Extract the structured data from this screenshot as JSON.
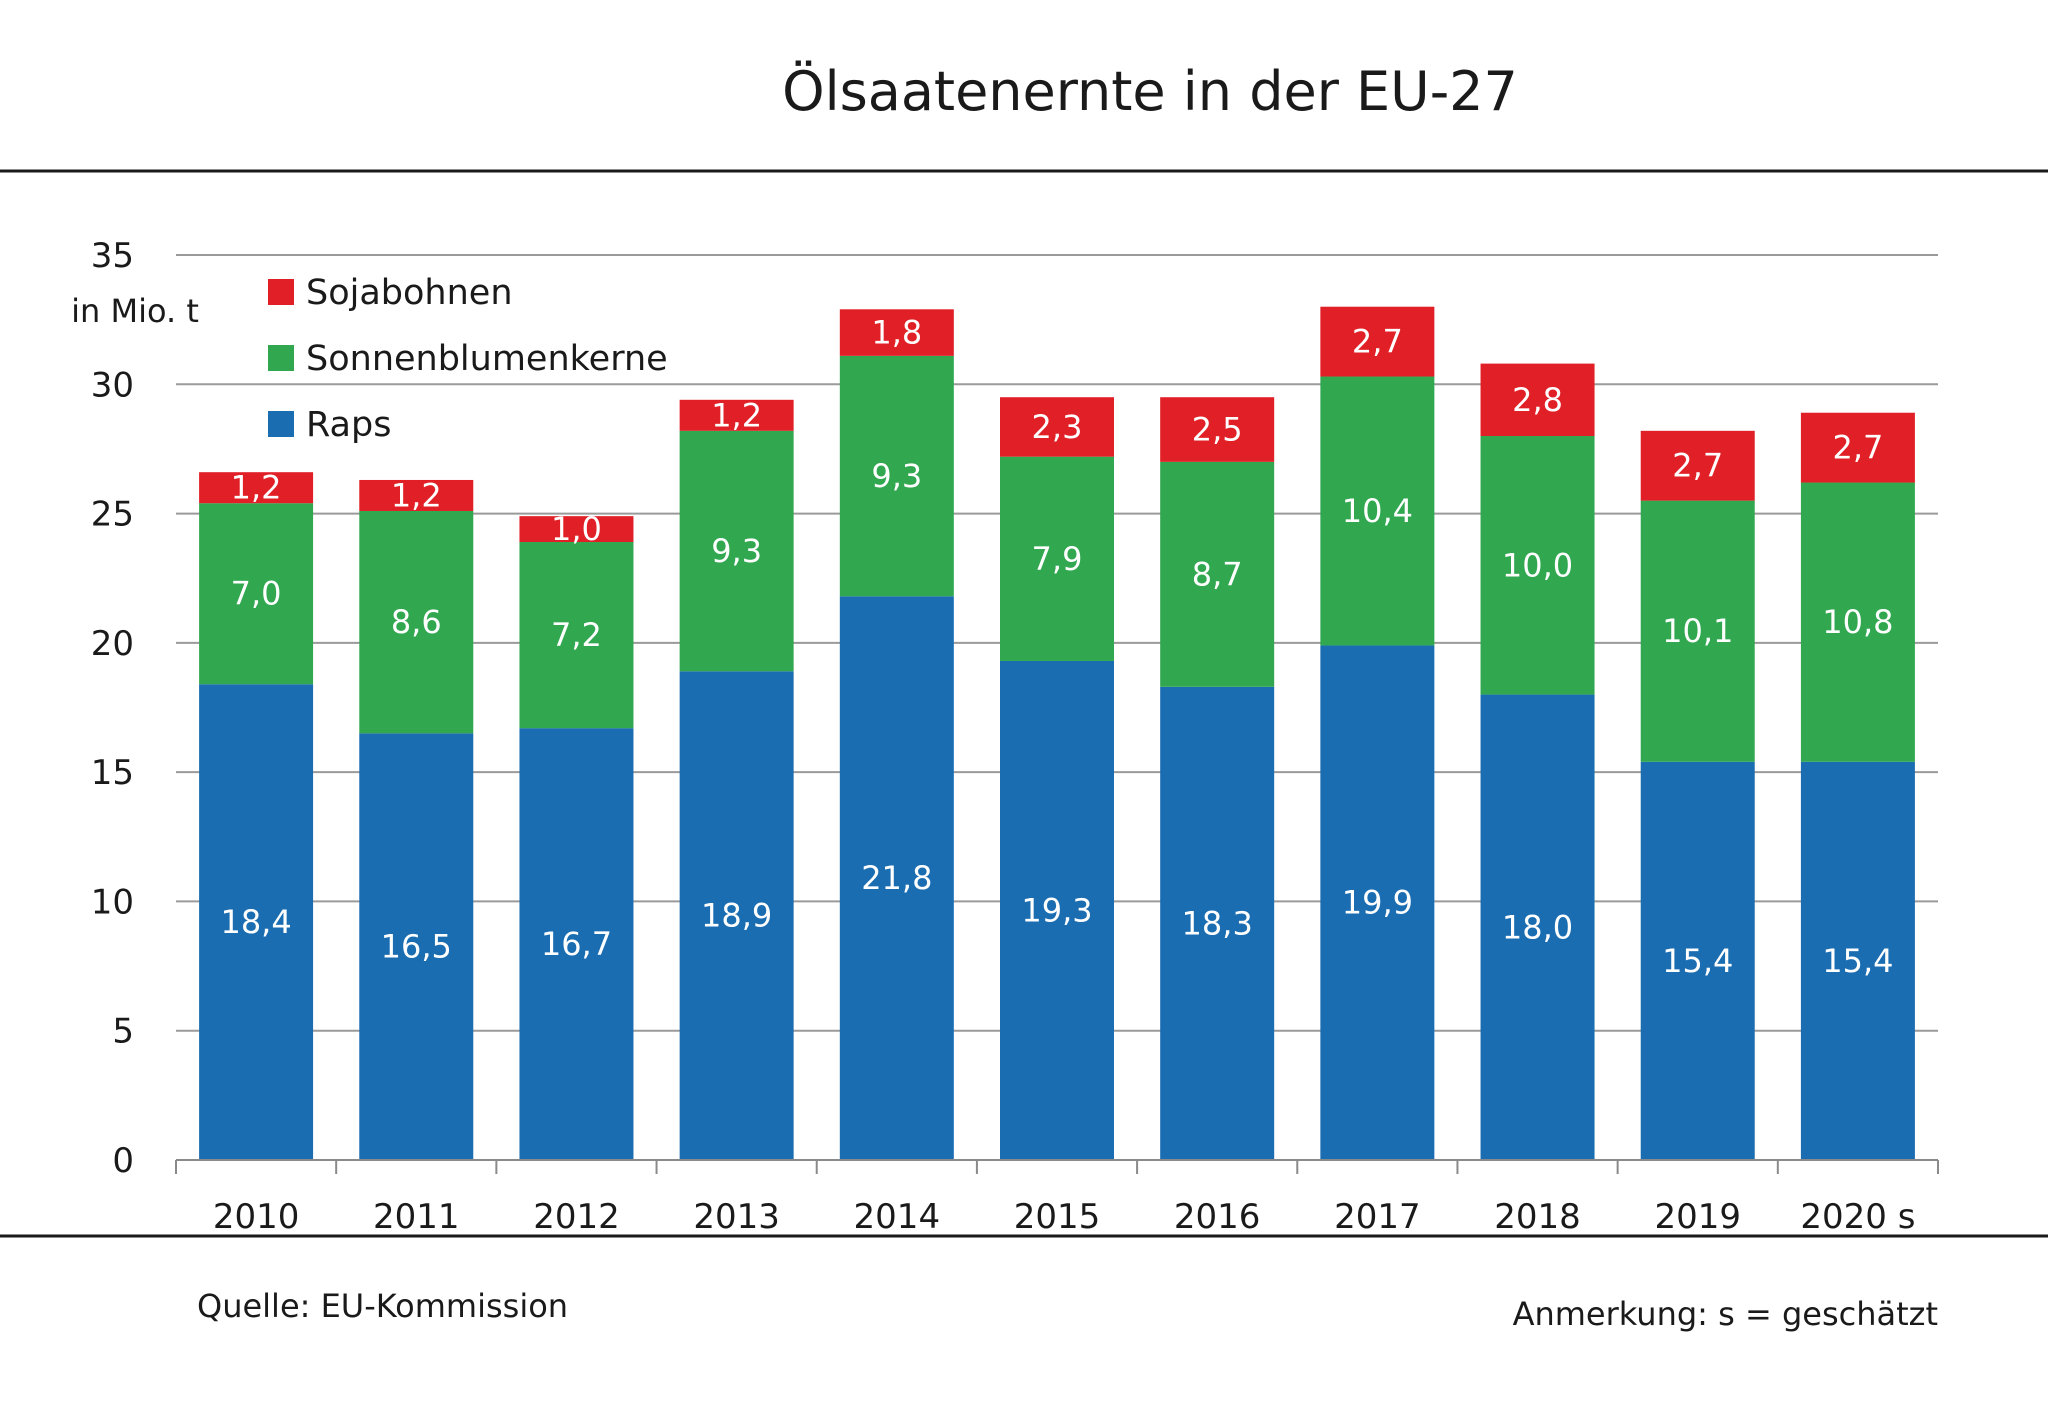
{
  "chart_data": {
    "type": "bar",
    "stacked": true,
    "title": "Ölsaatenernte in der EU-27",
    "ylabel": "in Mio. t",
    "ylim": [
      0,
      35
    ],
    "yticks": [
      0,
      5,
      10,
      15,
      20,
      25,
      30,
      35
    ],
    "grid": true,
    "legend_position": "top-left",
    "categories": [
      "2010",
      "2011",
      "2012",
      "2013",
      "2014",
      "2015",
      "2016",
      "2017",
      "2018",
      "2019",
      "2020 s"
    ],
    "series": [
      {
        "name": "Raps",
        "color": "#1b6db2",
        "values": [
          18.4,
          16.5,
          16.7,
          18.9,
          21.8,
          19.3,
          18.3,
          19.9,
          18.0,
          15.4,
          15.4
        ],
        "labels": [
          "18,4",
          "16,5",
          "16,7",
          "18,9",
          "21,8",
          "19,3",
          "18,3",
          "19,9",
          "18,0",
          "15,4",
          "15,4"
        ]
      },
      {
        "name": "Sonnenblumenkerne",
        "color": "#31a850",
        "values": [
          7.0,
          8.6,
          7.2,
          9.3,
          9.3,
          7.9,
          8.7,
          10.4,
          10.0,
          10.1,
          10.8
        ],
        "labels": [
          "7,0",
          "8,6",
          "7,2",
          "9,3",
          "9,3",
          "7,9",
          "8,7",
          "10,4",
          "10,0",
          "10,1",
          "10,8"
        ]
      },
      {
        "name": "Sojabohnen",
        "color": "#e11f26",
        "values": [
          1.2,
          1.2,
          1.0,
          1.2,
          1.8,
          2.3,
          2.5,
          2.7,
          2.8,
          2.7,
          2.7
        ],
        "labels": [
          "1,2",
          "1,2",
          "1,0",
          "1,2",
          "1,8",
          "2,3",
          "2,5",
          "2,7",
          "2,8",
          "2,7",
          "2,7"
        ]
      }
    ],
    "legend_order": [
      "Sojabohnen",
      "Sonnenblumenkerne",
      "Raps"
    ]
  },
  "footer": {
    "source": "Quelle: EU-Kommission",
    "note": "Anmerkung: s = geschätzt"
  }
}
